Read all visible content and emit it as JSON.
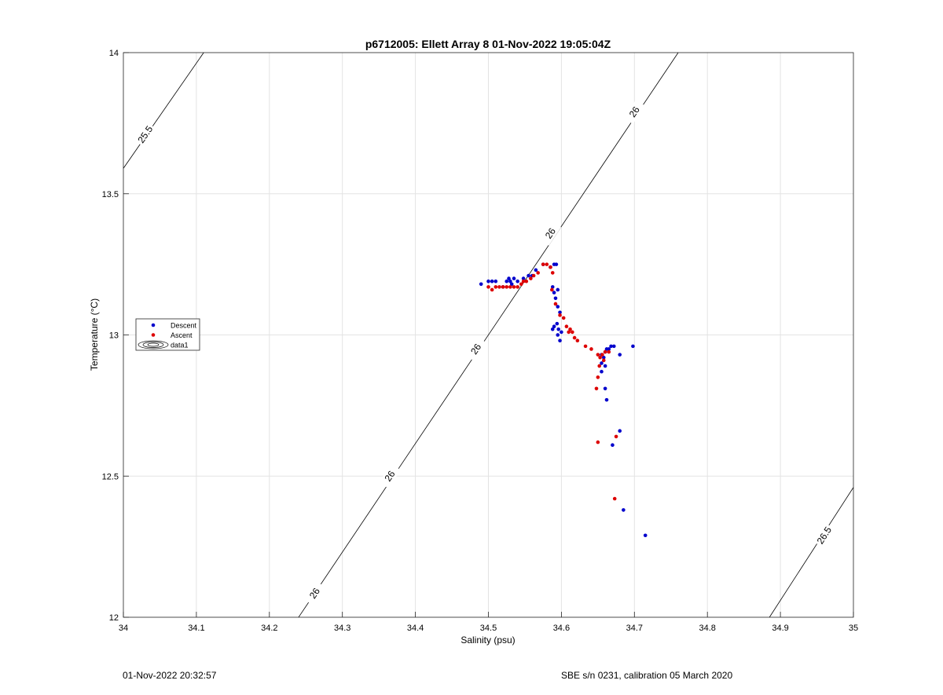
{
  "chart_data": {
    "type": "scatter",
    "title": "p6712005: Ellett Array 8 01-Nov-2022 19:05:04Z",
    "xlabel": "Salinity (psu)",
    "ylabel": "Temperature (°C)",
    "xlim": [
      34,
      35
    ],
    "ylim": [
      12,
      14
    ],
    "xticks": [
      "34",
      "34.1",
      "34.2",
      "34.3",
      "34.4",
      "34.5",
      "34.6",
      "34.7",
      "34.8",
      "34.9",
      "35"
    ],
    "yticks": [
      "12",
      "12.5",
      "13",
      "13.5",
      "14"
    ],
    "grid": true,
    "legend_position": "left",
    "legend": [
      {
        "name": "Descent",
        "marker": "dot",
        "color": "#0000cc"
      },
      {
        "name": "Ascent",
        "marker": "dot",
        "color": "#dd0000"
      },
      {
        "name": "data1",
        "marker": "contour-ellipse",
        "color": "#000000"
      }
    ],
    "contours": [
      {
        "label": "25.5",
        "points": [
          [
            34.0,
            13.59
          ],
          [
            34.11,
            14.0
          ]
        ],
        "label_at": [
          34.03,
          13.71
        ]
      },
      {
        "label": "26",
        "points": [
          [
            34.24,
            12.0
          ],
          [
            34.76,
            14.0
          ]
        ],
        "label_ats": [
          [
            34.262,
            12.085
          ],
          [
            34.365,
            12.5
          ],
          [
            34.483,
            12.95
          ],
          [
            34.585,
            13.36
          ],
          [
            34.7,
            13.79
          ]
        ]
      },
      {
        "label": "26.5",
        "points": [
          [
            34.885,
            12.0
          ],
          [
            35.0,
            12.46
          ]
        ],
        "label_at": [
          34.96,
          12.29
        ]
      }
    ],
    "series": [
      {
        "name": "Descent",
        "color": "#0000cc",
        "x": [
          34.49,
          34.5,
          34.505,
          34.51,
          34.52,
          34.525,
          34.528,
          34.53,
          34.532,
          34.535,
          34.54,
          34.548,
          34.555,
          34.56,
          34.565,
          34.575,
          34.585,
          34.59,
          34.593,
          34.595,
          34.59,
          34.588,
          34.592,
          34.595,
          34.598,
          34.594,
          34.59,
          34.588,
          34.596,
          34.6,
          34.595,
          34.598,
          34.655,
          34.66,
          34.665,
          34.668,
          34.672,
          34.68,
          34.698,
          34.662,
          34.658,
          34.655,
          34.66,
          34.655,
          34.66,
          34.662,
          34.68,
          34.67,
          34.685,
          34.715
        ],
        "y": [
          13.18,
          13.19,
          13.19,
          13.19,
          13.17,
          13.19,
          13.2,
          13.19,
          13.18,
          13.2,
          13.19,
          13.2,
          13.21,
          13.21,
          13.23,
          13.25,
          13.24,
          13.25,
          13.25,
          13.16,
          13.15,
          13.17,
          13.13,
          13.1,
          13.08,
          13.04,
          13.03,
          13.02,
          13.02,
          13.01,
          13.0,
          12.98,
          12.93,
          12.94,
          12.95,
          12.96,
          12.96,
          12.93,
          12.96,
          12.95,
          12.92,
          12.9,
          12.89,
          12.87,
          12.81,
          12.77,
          12.66,
          12.61,
          12.38,
          12.29
        ]
      },
      {
        "name": "Ascent",
        "color": "#dd0000",
        "x": [
          34.5,
          34.505,
          34.51,
          34.515,
          34.52,
          34.525,
          34.53,
          34.535,
          34.54,
          34.545,
          34.548,
          34.552,
          34.558,
          34.562,
          34.568,
          34.575,
          34.58,
          34.585,
          34.588,
          34.587,
          34.592,
          34.598,
          34.603,
          34.607,
          34.61,
          34.612,
          34.615,
          34.618,
          34.622,
          34.633,
          34.641,
          34.65,
          34.653,
          34.656,
          34.66,
          34.665,
          34.658,
          34.652,
          34.65,
          34.648,
          34.65,
          34.675,
          34.673
        ],
        "y": [
          13.17,
          13.16,
          13.17,
          13.17,
          13.17,
          13.17,
          13.17,
          13.17,
          13.17,
          13.18,
          13.19,
          13.19,
          13.2,
          13.21,
          13.22,
          13.25,
          13.25,
          13.24,
          13.22,
          13.16,
          13.11,
          13.07,
          13.06,
          13.03,
          13.01,
          13.02,
          13.01,
          12.99,
          12.98,
          12.96,
          12.95,
          12.93,
          12.92,
          12.93,
          12.94,
          12.94,
          12.91,
          12.89,
          12.85,
          12.81,
          12.62,
          12.64,
          12.42
        ]
      }
    ]
  },
  "footer": {
    "timestamp": "01-Nov-2022 20:32:57",
    "calibration": "SBE s/n 0231, calibration 05 March 2020"
  }
}
